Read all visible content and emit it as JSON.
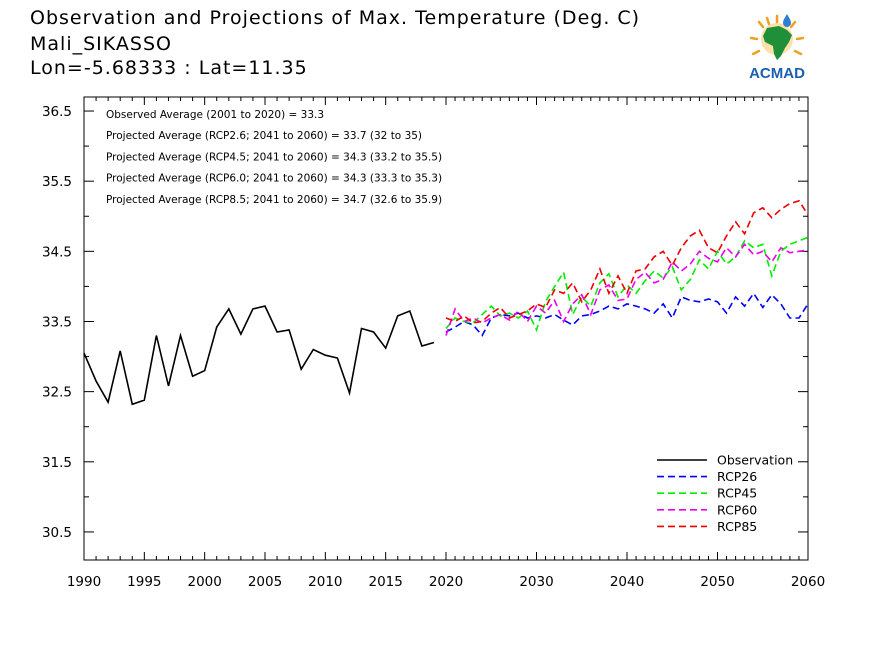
{
  "header": {
    "title": "Observation and Projections of Max. Temperature (Deg. C)",
    "location": "Mali_SIKASSO",
    "coords": "Lon=-5.68333 : Lat=11.35"
  },
  "logo": {
    "text": "ACMAD",
    "icon": "africa-map-sun-icon"
  },
  "annotations": [
    "Observed Average (2001 to 2020) = 33.3",
    "Projected Average (RCP2.6; 2041 to 2060) = 33.7 (32 to 35)",
    "Projected Average (RCP4.5; 2041 to 2060) = 34.3 (33.2 to 35.5)",
    "Projected Average (RCP6.0; 2041 to 2060) = 34.3 (33.3 to 35.3)",
    "Projected Average (RCP8.5; 2041 to 2060) = 34.7 (32.6 to 35.9)"
  ],
  "chart_data": {
    "type": "line",
    "title": "Observation and Projections of Max. Temperature (Deg. C)",
    "xlabel": "",
    "ylabel": "",
    "xlim": [
      1990,
      2060
    ],
    "ylim": [
      30.1,
      36.7
    ],
    "x_ticks": [
      1990,
      1995,
      2000,
      2005,
      2010,
      2015,
      2020,
      2030,
      2040,
      2050,
      2060
    ],
    "y_ticks": [
      30.5,
      31.5,
      32.5,
      33.5,
      34.5,
      35.5,
      36.5
    ],
    "y_tick_labels": [
      "30.5",
      "31.5",
      "32.5",
      "33.5",
      "34.5",
      "35.5",
      "36.5"
    ],
    "legend_position": "bottom-right",
    "grid": false,
    "series": [
      {
        "name": "Observation",
        "color": "#000000",
        "dashed": false,
        "x": [
          1990,
          1991,
          1992,
          1993,
          1994,
          1995,
          1996,
          1997,
          1998,
          1999,
          2000,
          2001,
          2002,
          2003,
          2004,
          2005,
          2006,
          2007,
          2008,
          2009,
          2010,
          2011,
          2012,
          2013,
          2014,
          2015,
          2016,
          2017,
          2018,
          2019
        ],
        "values": [
          33.05,
          32.65,
          32.35,
          33.08,
          32.32,
          32.38,
          33.3,
          32.58,
          33.3,
          32.72,
          32.8,
          33.42,
          33.68,
          33.32,
          33.68,
          33.72,
          33.35,
          33.38,
          32.82,
          33.1,
          33.02,
          32.98,
          32.48,
          33.4,
          33.35,
          33.12,
          33.58,
          33.65,
          33.15,
          33.2
        ]
      },
      {
        "name": "RCP26",
        "color": "#0000ff",
        "dashed": true,
        "x": [
          2020,
          2021,
          2022,
          2023,
          2024,
          2025,
          2026,
          2027,
          2028,
          2029,
          2030,
          2031,
          2032,
          2033,
          2034,
          2035,
          2036,
          2037,
          2038,
          2039,
          2040,
          2041,
          2042,
          2043,
          2044,
          2045,
          2046,
          2047,
          2048,
          2049,
          2050,
          2051,
          2052,
          2053,
          2054,
          2055,
          2056,
          2057,
          2058,
          2059,
          2060
        ],
        "values": [
          33.35,
          33.42,
          33.5,
          33.45,
          33.3,
          33.55,
          33.6,
          33.58,
          33.62,
          33.55,
          33.58,
          33.55,
          33.6,
          33.52,
          33.45,
          33.58,
          33.6,
          33.65,
          33.72,
          33.68,
          33.75,
          33.72,
          33.68,
          33.62,
          33.75,
          33.55,
          33.85,
          33.8,
          33.78,
          33.82,
          33.78,
          33.62,
          33.85,
          33.72,
          33.9,
          33.7,
          33.88,
          33.75,
          33.55,
          33.55,
          33.75
        ]
      },
      {
        "name": "RCP45",
        "color": "#00ee00",
        "dashed": true,
        "x": [
          2020,
          2021,
          2022,
          2023,
          2024,
          2025,
          2026,
          2027,
          2028,
          2029,
          2030,
          2031,
          2032,
          2033,
          2034,
          2035,
          2036,
          2037,
          2038,
          2039,
          2040,
          2041,
          2042,
          2043,
          2044,
          2045,
          2046,
          2047,
          2048,
          2049,
          2050,
          2051,
          2052,
          2053,
          2054,
          2055,
          2056,
          2057,
          2058,
          2059,
          2060
        ],
        "values": [
          33.4,
          33.55,
          33.5,
          33.48,
          33.6,
          33.72,
          33.58,
          33.62,
          33.55,
          33.65,
          33.38,
          33.78,
          34.0,
          34.2,
          33.6,
          33.85,
          33.72,
          34.05,
          34.18,
          33.85,
          34.02,
          33.9,
          34.08,
          34.22,
          34.12,
          34.28,
          33.95,
          34.1,
          34.38,
          34.25,
          34.5,
          34.32,
          34.42,
          34.65,
          34.55,
          34.6,
          34.15,
          34.5,
          34.6,
          34.65,
          34.7
        ]
      },
      {
        "name": "RCP60",
        "color": "#ee00ee",
        "dashed": true,
        "x": [
          2020,
          2021,
          2022,
          2023,
          2024,
          2025,
          2026,
          2027,
          2028,
          2029,
          2030,
          2031,
          2032,
          2033,
          2034,
          2035,
          2036,
          2037,
          2038,
          2039,
          2040,
          2041,
          2042,
          2043,
          2044,
          2045,
          2046,
          2047,
          2048,
          2049,
          2050,
          2051,
          2052,
          2053,
          2054,
          2055,
          2056,
          2057,
          2058,
          2059,
          2060
        ],
        "values": [
          33.3,
          33.68,
          33.5,
          33.55,
          33.48,
          33.55,
          33.6,
          33.52,
          33.65,
          33.5,
          33.72,
          33.62,
          33.8,
          33.5,
          33.75,
          33.88,
          33.6,
          33.95,
          34.02,
          33.8,
          33.82,
          34.1,
          34.2,
          34.05,
          34.1,
          34.35,
          34.22,
          34.32,
          34.5,
          34.4,
          34.35,
          34.55,
          34.42,
          34.6,
          34.45,
          34.5,
          34.35,
          34.55,
          34.48,
          34.5,
          34.52
        ]
      },
      {
        "name": "RCP85",
        "color": "#ee0000",
        "dashed": true,
        "x": [
          2020,
          2021,
          2022,
          2023,
          2024,
          2025,
          2026,
          2027,
          2028,
          2029,
          2030,
          2031,
          2032,
          2033,
          2034,
          2035,
          2036,
          2037,
          2038,
          2039,
          2040,
          2041,
          2042,
          2043,
          2044,
          2045,
          2046,
          2047,
          2048,
          2049,
          2050,
          2051,
          2052,
          2053,
          2054,
          2055,
          2056,
          2057,
          2058,
          2059,
          2060
        ],
        "values": [
          33.55,
          33.5,
          33.58,
          33.48,
          33.5,
          33.62,
          33.7,
          33.55,
          33.6,
          33.65,
          33.75,
          33.7,
          33.95,
          33.9,
          34.05,
          33.78,
          33.95,
          34.25,
          33.9,
          34.15,
          33.9,
          34.22,
          34.25,
          34.42,
          34.5,
          34.3,
          34.55,
          34.72,
          34.8,
          34.55,
          34.48,
          34.72,
          34.92,
          34.75,
          35.05,
          35.12,
          34.98,
          35.1,
          35.18,
          35.22,
          35.02
        ]
      }
    ]
  }
}
